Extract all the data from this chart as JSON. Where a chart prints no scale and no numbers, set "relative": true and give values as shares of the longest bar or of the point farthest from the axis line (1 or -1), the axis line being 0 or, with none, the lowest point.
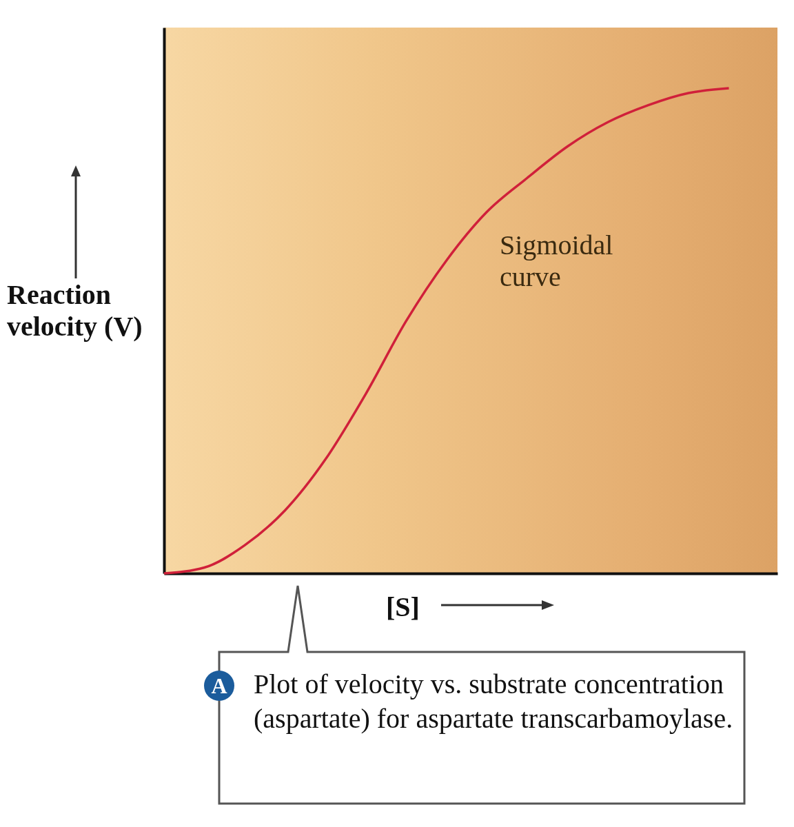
{
  "chart_data": {
    "type": "line",
    "relative": true,
    "ylabel": "Reaction velocity (V)",
    "xlabel": "[S]",
    "categories": [
      null,
      null,
      null,
      null,
      null,
      null,
      null,
      null,
      null,
      null,
      null,
      null,
      null,
      null,
      null
    ],
    "series": [
      {
        "name": "Sigmoidal curve",
        "color": "#d0203a",
        "values": [
          0,
          0.012,
          0.058,
          0.13,
          0.235,
          0.37,
          0.52,
          0.645,
          0.745,
          0.815,
          0.88,
          0.93,
          0.965,
          0.99,
          1
        ]
      }
    ],
    "annotations": [
      "A",
      "Plot of velocity vs. substrate concentration (aspartate) for aspartate transcarbamoylase."
    ]
  }
}
